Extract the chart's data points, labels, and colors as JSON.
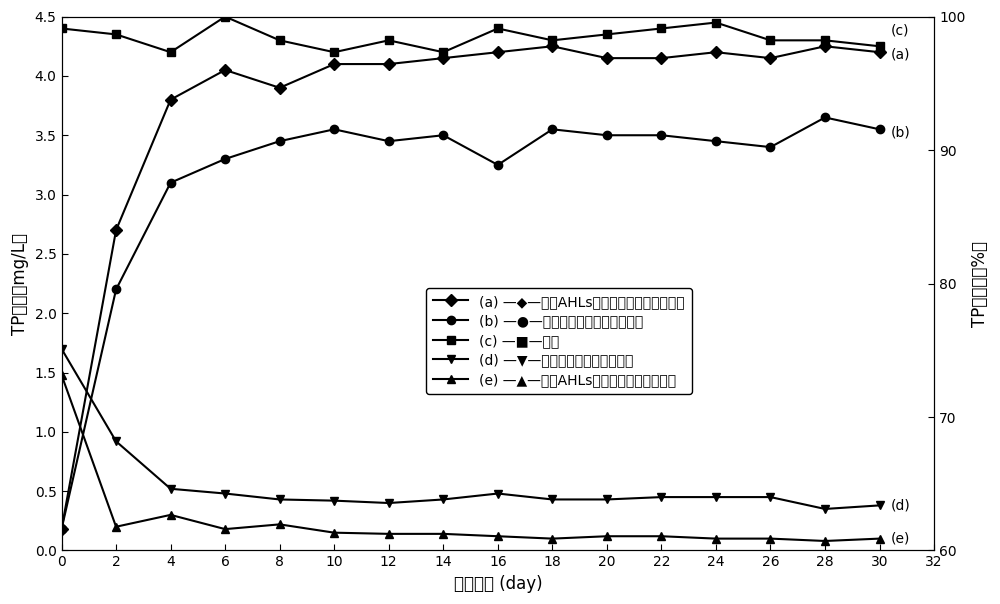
{
  "x": [
    0,
    2,
    4,
    6,
    8,
    10,
    12,
    14,
    16,
    18,
    20,
    22,
    24,
    26,
    28,
    30
  ],
  "series_c_inflow": [
    4.4,
    4.35,
    4.2,
    4.5,
    4.3,
    4.2,
    4.3,
    4.2,
    4.4,
    4.3,
    4.35,
    4.4,
    4.45,
    4.3,
    4.3,
    4.25
  ],
  "series_a_AHLs": [
    0.18,
    2.7,
    3.8,
    4.05,
    3.9,
    4.1,
    4.1,
    4.15,
    4.2,
    4.25,
    4.15,
    4.15,
    4.2,
    4.15,
    4.25,
    4.2
  ],
  "series_b_normal": [
    0.18,
    2.2,
    3.1,
    3.3,
    3.45,
    3.55,
    3.45,
    3.5,
    3.25,
    3.55,
    3.5,
    3.5,
    3.45,
    3.4,
    3.65,
    3.55
  ],
  "series_d_effluent_normal": [
    1.7,
    0.92,
    0.52,
    0.48,
    0.43,
    0.42,
    0.4,
    0.43,
    0.48,
    0.43,
    0.43,
    0.45,
    0.45,
    0.45,
    0.35,
    0.38
  ],
  "series_e_effluent_AHLs": [
    1.48,
    0.2,
    0.3,
    0.18,
    0.22,
    0.15,
    0.14,
    0.14,
    0.12,
    0.1,
    0.12,
    0.12,
    0.1,
    0.1,
    0.08,
    0.1
  ],
  "xlabel": "运行时间 (day)",
  "ylabel_left": "TP浓度（mg/L）",
  "ylabel_right": "TP去除率（%）",
  "legend_a": "(a) —◆—外添AHLs的周丛生物反应器去除率",
  "legend_b": "(b) —●—普通周丛生物反应器去除率",
  "legend_c": "(c) —■—进水",
  "legend_d": "(d) —▼—普通周丛生物反应器出水",
  "legend_e": "(e) —▲—外添AHLs的周丛生物反应器出水",
  "xlim": [
    0,
    32
  ],
  "ylim_left": [
    0.0,
    4.5
  ],
  "ylim_right": [
    60,
    100
  ],
  "xticks": [
    0,
    2,
    4,
    6,
    8,
    10,
    12,
    14,
    16,
    18,
    20,
    22,
    24,
    26,
    28,
    30,
    32
  ],
  "yticks_left": [
    0.0,
    0.5,
    1.0,
    1.5,
    2.0,
    2.5,
    3.0,
    3.5,
    4.0,
    4.5
  ],
  "yticks_right": [
    60,
    70,
    80,
    90,
    100
  ],
  "marker_size": 6,
  "line_width": 1.5
}
